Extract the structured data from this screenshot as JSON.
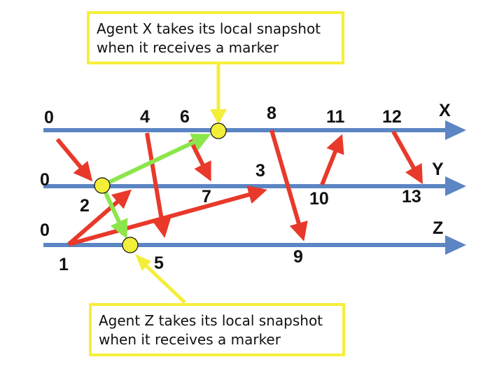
{
  "colors": {
    "timeline": "#5b85c3",
    "message": "#e8392a",
    "marker": "#8ce64b",
    "snapshot": "#f3ee3a",
    "callout_border": "#f6ef3a"
  },
  "timelines": [
    {
      "id": "x",
      "label": "X",
      "start": "0"
    },
    {
      "id": "y",
      "label": "Y",
      "start": "0"
    },
    {
      "id": "z",
      "label": "Z",
      "start": "0"
    }
  ],
  "event_labels": {
    "e1": "1",
    "e2": "2",
    "e3": "3",
    "e4": "4",
    "e5": "5",
    "e6": "6",
    "e7": "7",
    "e8": "8",
    "e9": "9",
    "e10": "10",
    "e11": "11",
    "e12": "12",
    "e13": "13"
  },
  "callouts": {
    "agent_x": {
      "line1": "Agent X takes its local snapshot",
      "line2": "when it receives a marker"
    },
    "agent_z": {
      "line1": "Agent Z takes its local snapshot",
      "line2": "when it receives a marker"
    }
  }
}
